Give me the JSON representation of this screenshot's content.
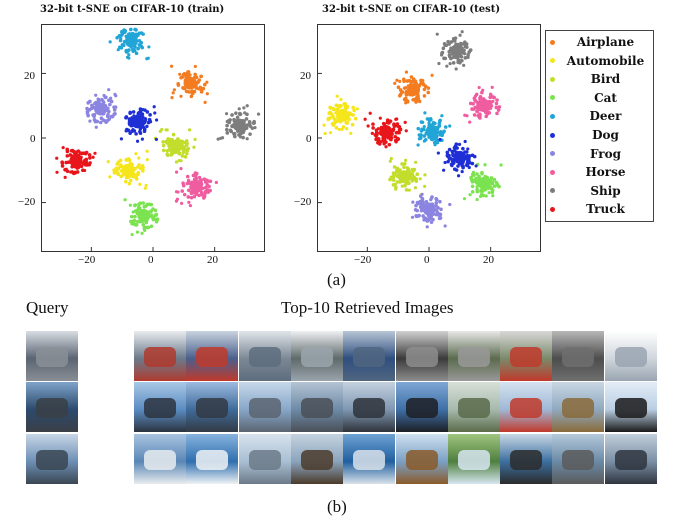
{
  "panel_a": {
    "caption": "(a)",
    "train_title": "32-bit t-SNE on CIFAR-10 (train)",
    "test_title": "32-bit t-SNE on CIFAR-10 (test)",
    "x_ticks": [
      "−20",
      "0",
      "20"
    ],
    "y_ticks": [
      "20",
      "0",
      "−20"
    ]
  },
  "panel_b": {
    "caption": "(b)",
    "query_label": "Query",
    "retrieved_label": "Top-10 Retrieved Images"
  },
  "legend": [
    {
      "label": "Airplane",
      "color": "#f47c20"
    },
    {
      "label": "Automobile",
      "color": "#f5e51b"
    },
    {
      "label": "Bird",
      "color": "#c3dd2c"
    },
    {
      "label": "Cat",
      "color": "#7be34f"
    },
    {
      "label": "Deer",
      "color": "#21a5d6"
    },
    {
      "label": "Dog",
      "color": "#1f2fd6"
    },
    {
      "label": "Frog",
      "color": "#8b84e0"
    },
    {
      "label": "Horse",
      "color": "#ef5c9f"
    },
    {
      "label": "Ship",
      "color": "#7d7d7d"
    },
    {
      "label": "Truck",
      "color": "#e8151b"
    }
  ],
  "chart_data": [
    {
      "type": "scatter",
      "title": "32-bit t-SNE on CIFAR-10 (train)",
      "xlim": [
        -36,
        36
      ],
      "ylim": [
        -35,
        35
      ],
      "x_ticks": [
        -20,
        0,
        20
      ],
      "y_ticks": [
        -20,
        0,
        20
      ],
      "series": [
        {
          "name": "Airplane",
          "center": [
            12,
            17
          ]
        },
        {
          "name": "Automobile",
          "center": [
            -8,
            -10
          ]
        },
        {
          "name": "Bird",
          "center": [
            7,
            -3
          ]
        },
        {
          "name": "Cat",
          "center": [
            -3,
            -24
          ]
        },
        {
          "name": "Deer",
          "center": [
            -7,
            30
          ]
        },
        {
          "name": "Dog",
          "center": [
            -5,
            5
          ]
        },
        {
          "name": "Frog",
          "center": [
            -17,
            9
          ]
        },
        {
          "name": "Horse",
          "center": [
            14,
            -15
          ]
        },
        {
          "name": "Ship",
          "center": [
            28,
            4
          ]
        },
        {
          "name": "Truck",
          "center": [
            -25,
            -7
          ]
        }
      ]
    },
    {
      "type": "scatter",
      "title": "32-bit t-SNE on CIFAR-10 (test)",
      "xlim": [
        -36,
        36
      ],
      "ylim": [
        -35,
        35
      ],
      "x_ticks": [
        -20,
        0,
        20
      ],
      "y_ticks": [
        -20,
        0,
        20
      ],
      "series": [
        {
          "name": "Airplane",
          "center": [
            -5,
            15
          ]
        },
        {
          "name": "Automobile",
          "center": [
            -28,
            7
          ]
        },
        {
          "name": "Bird",
          "center": [
            -8,
            -12
          ]
        },
        {
          "name": "Cat",
          "center": [
            18,
            -14
          ]
        },
        {
          "name": "Deer",
          "center": [
            1,
            2
          ]
        },
        {
          "name": "Dog",
          "center": [
            10,
            -6
          ]
        },
        {
          "name": "Frog",
          "center": [
            0,
            -22
          ]
        },
        {
          "name": "Horse",
          "center": [
            18,
            10
          ]
        },
        {
          "name": "Ship",
          "center": [
            9,
            27
          ]
        },
        {
          "name": "Truck",
          "center": [
            -14,
            2
          ]
        }
      ]
    }
  ],
  "thumb_rows": [
    {
      "query": [
        "#5a6472",
        "#d8dde3",
        "#8a8f96"
      ],
      "retrieved": [
        [
          "#6b7a8a",
          "#e9ecef",
          "#b03a2e"
        ],
        [
          "#4a5f8c",
          "#c9d3df",
          "#c0392b"
        ],
        [
          "#7c8894",
          "#dfe5ea",
          "#5d6d7e"
        ],
        [
          "#5f6a6a",
          "#eef0f2",
          "#9aa4ad"
        ],
        [
          "#2f4f7f",
          "#b8c6d6",
          "#506680"
        ],
        [
          "#3b3b3b",
          "#d0d0d0",
          "#8d8d8d"
        ],
        [
          "#5b6b4e",
          "#e8e8e8",
          "#999999"
        ],
        [
          "#7a8a6a",
          "#d8d8d8",
          "#c0392b"
        ],
        [
          "#4d4d4d",
          "#b7b7b7",
          "#6f6f6f"
        ],
        [
          "#cfd6dc",
          "#ffffff",
          "#9aa5b1"
        ]
      ]
    },
    {
      "query": [
        "#2c4a6e",
        "#7ea3c9",
        "#3a3f45"
      ],
      "retrieved": [
        [
          "#5b8cc2",
          "#a9c8e6",
          "#2b3440"
        ],
        [
          "#3f6b9a",
          "#9cbbe0",
          "#333a44"
        ],
        [
          "#87a7c9",
          "#c6d8ea",
          "#5a6470"
        ],
        [
          "#6d8aa6",
          "#b4c4d4",
          "#4a4f57"
        ],
        [
          "#7f97b2",
          "#c4d1df",
          "#2e333a"
        ],
        [
          "#3e6fa6",
          "#7ea7d6",
          "#1d1f24"
        ],
        [
          "#a7b9ad",
          "#d7e0d6",
          "#5b6b4a"
        ],
        [
          "#9fb8d6",
          "#d5e2ef",
          "#c0392b"
        ],
        [
          "#8fa9bf",
          "#c9d7e4",
          "#8a6a3a"
        ],
        [
          "#b9cee3",
          "#e3edf6",
          "#1a1a1a"
        ]
      ]
    },
    {
      "query": [
        "#6d8fb5",
        "#c8d6e6",
        "#3a4652"
      ],
      "retrieved": [
        [
          "#5a86b5",
          "#a9c4e0",
          "#e8ecef"
        ],
        [
          "#2f6fae",
          "#87b3de",
          "#eef2f5"
        ],
        [
          "#a9bfd4",
          "#d7e2ec",
          "#6c7a88"
        ],
        [
          "#8aa4bc",
          "#c5d3e0",
          "#4b3b2b"
        ],
        [
          "#1f5f9f",
          "#6fa2d4",
          "#d9e2ea"
        ],
        [
          "#7aa0c4",
          "#cfe0ef",
          "#8a5a2a"
        ],
        [
          "#4f7f3f",
          "#9fc47f",
          "#d6e6f0"
        ],
        [
          "#3c6fa0",
          "#c9d8e6",
          "#2b2b2b"
        ],
        [
          "#6a8aa6",
          "#b5c9db",
          "#5a5a5a"
        ],
        [
          "#7a8fa5",
          "#c2cfdb",
          "#2f3540"
        ]
      ]
    }
  ]
}
